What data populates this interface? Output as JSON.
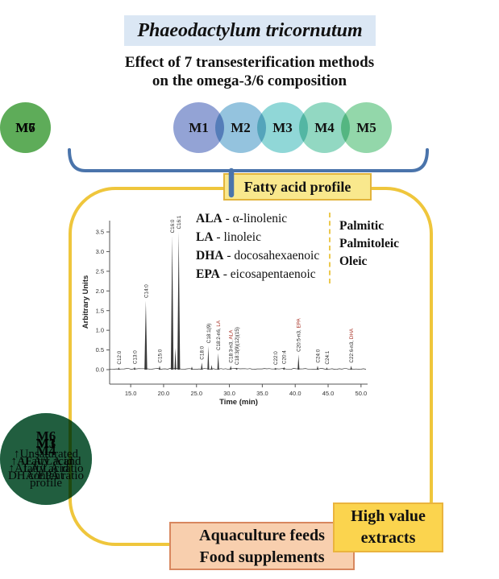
{
  "header": {
    "title": "Phaeodactylum tricornutum",
    "subtitle_line1": "Effect of 7 transesterification methods",
    "subtitle_line2": "on the omega-3/6 composition"
  },
  "top_methods": [
    {
      "label": "M1",
      "color": "#93a3d5"
    },
    {
      "label": "M2",
      "color": "#94c3de"
    },
    {
      "label": "M3",
      "color": "#90d7d7"
    },
    {
      "label": "M4",
      "color": "#92d8c2"
    },
    {
      "label": "M5",
      "color": "#93d7aa"
    },
    {
      "label": "M6",
      "color": "#8fd19a"
    },
    {
      "label": "M7",
      "color": "#a7d293"
    }
  ],
  "profile_box": {
    "label": "Fatty acid profile"
  },
  "legend": {
    "sep": " - ",
    "items": [
      {
        "abbr": "ALA",
        "name": "α-linolenic"
      },
      {
        "abbr": "LA",
        "name": "linoleic"
      },
      {
        "abbr": "DHA",
        "name": "docosahexaenoic"
      },
      {
        "abbr": "EPA",
        "name": "eicosapentaenoic"
      }
    ],
    "side_items": [
      "Palmitic",
      "Palmitoleic",
      "Oleic"
    ]
  },
  "chart_data": {
    "type": "line",
    "title": "",
    "xlabel": "Time (min)",
    "ylabel": "Arbitrary Units",
    "xlim": [
      11.8,
      51
    ],
    "ylim": [
      0,
      3.8
    ],
    "x_ticks": [
      15,
      20,
      25,
      30,
      35,
      40,
      45,
      50
    ],
    "y_ticks": [
      0.0,
      0.5,
      1.0,
      1.5,
      2.0,
      2.5,
      3.0,
      3.5
    ],
    "grid": false,
    "line_color": "#3a3a3a",
    "peak_label_color": "#a83226",
    "peaks": [
      {
        "time": 13.2,
        "height": 0.06,
        "label": "C12:0"
      },
      {
        "time": 15.6,
        "height": 0.07,
        "label": "C13:0"
      },
      {
        "time": 17.3,
        "height": 1.75,
        "label": "C14:0"
      },
      {
        "time": 19.4,
        "height": 0.1,
        "label": "C15:0"
      },
      {
        "time": 21.3,
        "height": 3.4,
        "label": "C16:0"
      },
      {
        "time": 21.8,
        "height": 0.55,
        "label": ""
      },
      {
        "time": 22.3,
        "height": 3.5,
        "label": "C16:1"
      },
      {
        "time": 24.3,
        "height": 0.08,
        "label": ""
      },
      {
        "time": 25.8,
        "height": 0.18,
        "label": "C18:0"
      },
      {
        "time": 26.8,
        "height": 0.6,
        "label": "C18:1(9)"
      },
      {
        "time": 27.3,
        "height": 0.12,
        "label": ""
      },
      {
        "time": 28.3,
        "height": 0.42,
        "label": "C18:2-n6,",
        "red_label": "LA"
      },
      {
        "time": 30.2,
        "height": 0.1,
        "label": "C18:3-n3,",
        "red_label": "ALA"
      },
      {
        "time": 31.1,
        "height": 0.05,
        "label": "C18:3(9)(12)(15)"
      },
      {
        "time": 37.0,
        "height": 0.05,
        "label": "C22:0"
      },
      {
        "time": 38.3,
        "height": 0.07,
        "label": "C20:4"
      },
      {
        "time": 40.5,
        "height": 0.38,
        "label": "C20:5-n3,",
        "red_label": "EPA"
      },
      {
        "time": 43.4,
        "height": 0.1,
        "label": "C24:0"
      },
      {
        "time": 44.8,
        "height": 0.06,
        "label": "C24:1"
      },
      {
        "time": 48.5,
        "height": 0.1,
        "label": "C22:6-n3,",
        "red_label": "DHA"
      }
    ]
  },
  "bottom_methods": [
    {
      "label": "M1",
      "desc": "↑Fatty acid content",
      "color": "#95a7d4"
    },
    {
      "label": "M3",
      "desc": "↑ALA/LA and DHA/EPA ratio",
      "color": "#93dad2"
    },
    {
      "label": "M4",
      "desc": "↑ALA/LA ratio",
      "color": "#96d2a8"
    },
    {
      "label": "M6",
      "desc": "↑Unsaturated fatty acid profile",
      "color": "#a4ca8c"
    }
  ],
  "outcome_boxes": {
    "high_value": "High value extracts",
    "applications_line1": "Aquaculture feeds",
    "applications_line2": "Food supplements"
  },
  "colors": {
    "title_bg": "#dbe7f4",
    "brace": "#4a74ab",
    "container_border": "#efc63c",
    "profile_box_bg": "#f9e88d",
    "high_value_bg": "#fbd44e",
    "applications_bg": "#f8cfae"
  }
}
